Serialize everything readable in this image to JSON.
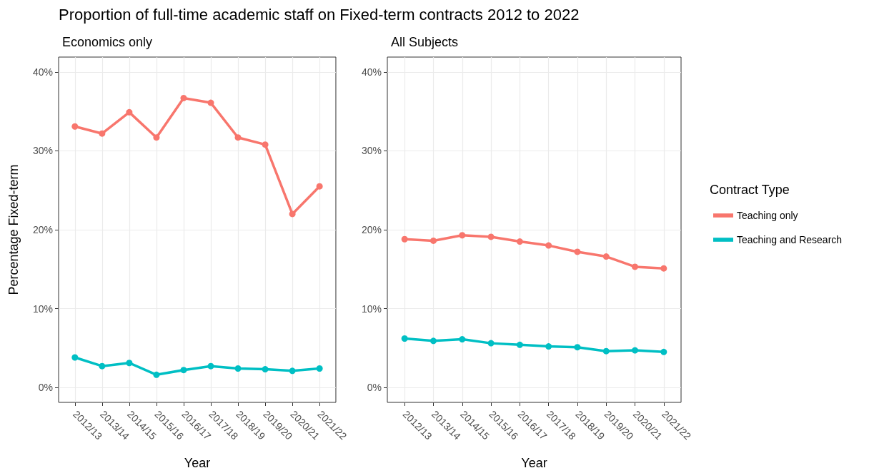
{
  "chart_data": [
    {
      "type": "line",
      "title": "Proportion of full-time academic staff on Fixed-term contracts 2012 to 2022",
      "subtitle": "Economics only",
      "xlabel": "Year",
      "ylabel": "Percentage Fixed-term",
      "categories": [
        "2012/13",
        "2013/14",
        "2014/15",
        "2015/16",
        "2016/17",
        "2017/18",
        "2018/19",
        "2019/20",
        "2020/21",
        "2021/22"
      ],
      "series": [
        {
          "color": "#f8766d",
          "values": [
            33.1,
            32.2,
            34.9,
            31.7,
            36.7,
            36.1,
            31.7,
            30.8,
            22.0,
            25.5
          ]
        },
        {
          "color": "#00bfc4",
          "values": [
            3.8,
            2.7,
            3.1,
            1.6,
            2.2,
            2.7,
            2.4,
            2.3,
            2.1,
            2.4
          ]
        }
      ],
      "ylim": [
        -1.9,
        41.9
      ],
      "yticks": [
        {
          "value": 0,
          "label": "0%"
        },
        {
          "value": 10,
          "label": "10%"
        },
        {
          "value": 20,
          "label": "20%"
        },
        {
          "value": 30,
          "label": "30%"
        },
        {
          "value": 40,
          "label": "40%"
        }
      ],
      "grid": true,
      "marker": "circle",
      "line_style": "solid"
    },
    {
      "type": "line",
      "subtitle": "All Subjects",
      "xlabel": "Year",
      "legend_title": "Contract Type",
      "categories": [
        "2012/13",
        "2013/14",
        "2014/15",
        "2015/16",
        "2016/17",
        "2017/18",
        "2018/19",
        "2019/20",
        "2020/21",
        "2021/22"
      ],
      "series": [
        {
          "name": "Teaching only",
          "color": "#f8766d",
          "values": [
            18.8,
            18.6,
            19.3,
            19.1,
            18.5,
            18.0,
            17.2,
            16.6,
            15.3,
            15.1
          ]
        },
        {
          "name": "Teaching and Research",
          "color": "#00bfc4",
          "values": [
            6.2,
            5.9,
            6.1,
            5.6,
            5.4,
            5.2,
            5.1,
            4.6,
            4.7,
            4.5
          ]
        }
      ],
      "ylim": [
        -1.9,
        41.9
      ],
      "yticks": [
        {
          "value": 0,
          "label": "0%"
        },
        {
          "value": 10,
          "label": "10%"
        },
        {
          "value": 20,
          "label": "20%"
        },
        {
          "value": 30,
          "label": "30%"
        },
        {
          "value": 40,
          "label": "40%"
        }
      ],
      "grid": true,
      "legend": "right",
      "marker": "circle",
      "line_style": "solid"
    }
  ]
}
